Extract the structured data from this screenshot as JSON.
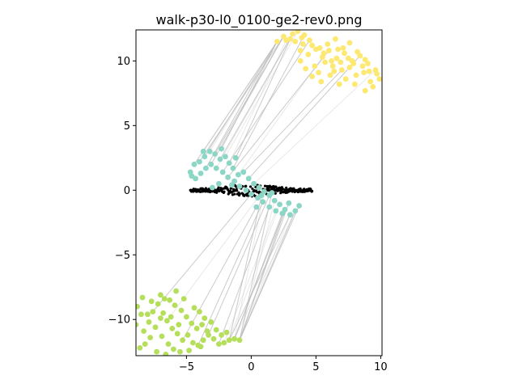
{
  "chart_data": {
    "type": "scatter",
    "title": "walk-p30-l0_0100-ge2-rev0.png",
    "xlabel": "",
    "ylabel": "",
    "xlim": [
      -8.9,
      10.1
    ],
    "ylim": [
      -12.8,
      12.4
    ],
    "x_ticks": [
      -5,
      0,
      5,
      10
    ],
    "y_ticks": [
      -10,
      -5,
      0,
      5,
      10
    ],
    "x_tick_labels": [
      "−5",
      "0",
      "5",
      "10"
    ],
    "y_tick_labels": [
      "−10",
      "−5",
      "0",
      "5",
      "10"
    ],
    "grid": false,
    "legend": "none",
    "colors": {
      "yellow_cluster": "#fde872",
      "teal_cluster": "#8cd6c5",
      "green_cluster": "#b5de5a",
      "black_walk": "#000000",
      "links": "#bdbdbd"
    },
    "series": [
      {
        "color": "#fde872",
        "points": [
          [
            2.0,
            11.5
          ],
          [
            2.5,
            11.9
          ],
          [
            3.2,
            12.1
          ],
          [
            3.6,
            12.3
          ],
          [
            4.1,
            12.0
          ],
          [
            4.5,
            11.6
          ],
          [
            4.0,
            11.3
          ],
          [
            3.4,
            11.5
          ],
          [
            3.8,
            10.8
          ],
          [
            4.4,
            10.5
          ],
          [
            5.0,
            10.9
          ],
          [
            5.5,
            10.3
          ],
          [
            6.0,
            10.8
          ],
          [
            6.6,
            10.2
          ],
          [
            7.2,
            10.6
          ],
          [
            7.8,
            10.0
          ],
          [
            8.4,
            10.4
          ],
          [
            9.0,
            9.8
          ],
          [
            9.6,
            9.3
          ],
          [
            9.9,
            8.6
          ],
          [
            9.2,
            8.4
          ],
          [
            8.7,
            9.1
          ],
          [
            8.1,
            8.9
          ],
          [
            7.6,
            9.5
          ],
          [
            7.0,
            9.3
          ],
          [
            6.3,
            9.6
          ],
          [
            5.7,
            9.9
          ],
          [
            5.2,
            9.1
          ],
          [
            4.7,
            8.8
          ],
          [
            4.2,
            9.4
          ],
          [
            3.8,
            10.0
          ],
          [
            5.9,
            11.3
          ],
          [
            6.5,
            11.7
          ],
          [
            7.1,
            11.0
          ],
          [
            7.6,
            11.4
          ],
          [
            8.2,
            10.7
          ],
          [
            8.8,
            10.1
          ],
          [
            9.4,
            8.0
          ],
          [
            8.8,
            7.7
          ],
          [
            8.0,
            8.2
          ],
          [
            7.3,
            8.6
          ],
          [
            6.8,
            8.2
          ],
          [
            6.1,
            8.9
          ],
          [
            5.4,
            8.4
          ],
          [
            4.9,
            9.6
          ],
          [
            5.6,
            10.6
          ],
          [
            6.2,
            10.0
          ],
          [
            6.9,
            9.9
          ],
          [
            7.5,
            10.2
          ],
          [
            8.6,
            9.6
          ],
          [
            9.7,
            9.0
          ],
          [
            3.0,
            11.7
          ],
          [
            4.7,
            11.2
          ],
          [
            5.3,
            11.0
          ],
          [
            6.7,
            10.9
          ],
          [
            7.9,
            9.8
          ],
          [
            9.1,
            9.2
          ],
          [
            2.7,
            11.6
          ],
          [
            3.9,
            11.8
          ],
          [
            6.4,
            9.2
          ]
        ]
      },
      {
        "color": "#8cd6c5",
        "points": [
          [
            -4.7,
            1.4
          ],
          [
            -4.4,
            2.0
          ],
          [
            -4.0,
            2.2
          ],
          [
            -3.6,
            2.6
          ],
          [
            -3.2,
            3.0
          ],
          [
            -2.8,
            2.8
          ],
          [
            -2.4,
            2.4
          ],
          [
            -2.0,
            2.6
          ],
          [
            -1.7,
            2.1
          ],
          [
            -1.4,
            1.7
          ],
          [
            -1.0,
            1.2
          ],
          [
            -0.6,
            1.4
          ],
          [
            -0.2,
            0.9
          ],
          [
            0.2,
            0.5
          ],
          [
            0.6,
            0.2
          ],
          [
            1.0,
            -0.1
          ],
          [
            1.4,
            -0.4
          ],
          [
            1.8,
            -0.8
          ],
          [
            2.2,
            -1.1
          ],
          [
            2.6,
            -1.5
          ],
          [
            3.0,
            -1.9
          ],
          [
            3.4,
            -1.6
          ],
          [
            3.7,
            -1.2
          ],
          [
            2.4,
            -1.8
          ],
          [
            1.9,
            -1.6
          ],
          [
            1.4,
            -1.3
          ],
          [
            0.9,
            -0.9
          ],
          [
            0.5,
            -0.6
          ],
          [
            0.0,
            -0.3
          ],
          [
            -0.4,
            0.0
          ],
          [
            -0.9,
            0.3
          ],
          [
            -1.3,
            0.7
          ],
          [
            -1.8,
            1.0
          ],
          [
            -2.2,
            1.4
          ],
          [
            -2.7,
            1.7
          ],
          [
            -3.1,
            2.0
          ],
          [
            -3.5,
            1.7
          ],
          [
            -3.9,
            1.3
          ],
          [
            -4.3,
            0.9
          ],
          [
            -4.6,
            1.1
          ],
          [
            -3.0,
            0.2
          ],
          [
            -2.5,
            0.5
          ],
          [
            -1.5,
            0.4
          ],
          [
            -3.7,
            3.0
          ],
          [
            -2.3,
            3.2
          ],
          [
            -1.2,
            2.5
          ],
          [
            0.4,
            -1.3
          ],
          [
            0.8,
            -0.4
          ],
          [
            1.6,
            -0.2
          ],
          [
            2.9,
            -1.0
          ]
        ]
      },
      {
        "color": "#b5de5a",
        "points": [
          [
            -8.8,
            -9.0
          ],
          [
            -8.5,
            -9.6
          ],
          [
            -8.9,
            -10.4
          ],
          [
            -8.3,
            -10.9
          ],
          [
            -7.9,
            -10.2
          ],
          [
            -7.6,
            -9.4
          ],
          [
            -7.2,
            -8.8
          ],
          [
            -6.8,
            -9.5
          ],
          [
            -6.5,
            -10.1
          ],
          [
            -6.1,
            -10.7
          ],
          [
            -5.7,
            -11.1
          ],
          [
            -5.3,
            -11.6
          ],
          [
            -4.9,
            -11.2
          ],
          [
            -4.5,
            -11.8
          ],
          [
            -4.1,
            -12.0
          ],
          [
            -3.7,
            -11.6
          ],
          [
            -3.3,
            -11.2
          ],
          [
            -2.9,
            -11.5
          ],
          [
            -2.5,
            -11.9
          ],
          [
            -2.1,
            -11.8
          ],
          [
            -1.7,
            -11.6
          ],
          [
            -1.3,
            -11.5
          ],
          [
            -0.9,
            -11.6
          ],
          [
            -7.0,
            -8.1
          ],
          [
            -6.3,
            -8.5
          ],
          [
            -5.9,
            -8.9
          ],
          [
            -5.4,
            -9.3
          ],
          [
            -5.0,
            -9.8
          ],
          [
            -4.6,
            -10.3
          ],
          [
            -4.2,
            -10.7
          ],
          [
            -3.8,
            -10.4
          ],
          [
            -3.4,
            -10.9
          ],
          [
            -5.8,
            -7.8
          ],
          [
            -7.4,
            -10.6
          ],
          [
            -6.9,
            -11.3
          ],
          [
            -6.4,
            -11.9
          ],
          [
            -6.0,
            -12.3
          ],
          [
            -5.5,
            -12.5
          ],
          [
            -7.8,
            -11.4
          ],
          [
            -8.2,
            -11.9
          ],
          [
            -8.6,
            -12.2
          ],
          [
            -7.3,
            -12.5
          ],
          [
            -6.6,
            -12.7
          ],
          [
            -4.8,
            -12.4
          ],
          [
            -3.9,
            -12.1
          ],
          [
            -4.4,
            -9.1
          ],
          [
            -5.2,
            -8.4
          ],
          [
            -6.7,
            -8.4
          ],
          [
            -7.7,
            -8.6
          ],
          [
            -8.4,
            -8.3
          ],
          [
            -3.1,
            -10.2
          ],
          [
            -2.7,
            -10.8
          ],
          [
            -5.6,
            -10.4
          ],
          [
            -6.2,
            -9.8
          ],
          [
            -7.0,
            -9.9
          ],
          [
            -8.0,
            -9.6
          ],
          [
            -4.0,
            -9.4
          ],
          [
            -3.6,
            -9.9
          ],
          [
            -2.3,
            -11.2
          ],
          [
            -1.9,
            -11.0
          ]
        ]
      }
    ],
    "walk": {
      "color": "#000000",
      "x_range": [
        -4.7,
        4.7
      ],
      "y_spread": 0.7
    },
    "links": {
      "color": "#bdbdbd",
      "pairs": [
        [
          [
            -3.2,
            3.0
          ],
          [
            2.0,
            11.5
          ]
        ],
        [
          [
            -2.8,
            2.8
          ],
          [
            2.5,
            11.9
          ]
        ],
        [
          [
            -2.4,
            2.4
          ],
          [
            3.2,
            12.1
          ]
        ],
        [
          [
            -2.0,
            2.6
          ],
          [
            3.6,
            12.3
          ]
        ],
        [
          [
            -3.6,
            2.6
          ],
          [
            2.0,
            11.5
          ]
        ],
        [
          [
            -4.0,
            2.2
          ],
          [
            2.5,
            11.9
          ]
        ],
        [
          [
            -1.7,
            2.1
          ],
          [
            2.7,
            11.6
          ]
        ],
        [
          [
            -1.4,
            1.7
          ],
          [
            4.1,
            12.0
          ]
        ],
        [
          [
            -3.5,
            1.7
          ],
          [
            2.0,
            11.5
          ]
        ],
        [
          [
            -2.7,
            1.7
          ],
          [
            3.0,
            11.7
          ]
        ],
        [
          [
            -3.1,
            2.0
          ],
          [
            2.5,
            11.9
          ]
        ],
        [
          [
            -4.4,
            2.0
          ],
          [
            2.0,
            11.5
          ]
        ],
        [
          [
            -1.0,
            1.2
          ],
          [
            5.5,
            10.3
          ]
        ],
        [
          [
            -0.6,
            1.4
          ],
          [
            7.0,
            9.3
          ]
        ],
        [
          [
            -0.2,
            0.9
          ],
          [
            8.4,
            10.4
          ]
        ],
        [
          [
            0.2,
            0.5
          ],
          [
            9.6,
            9.3
          ]
        ],
        [
          [
            -1.8,
            1.0
          ],
          [
            6.0,
            10.8
          ]
        ],
        [
          [
            -2.2,
            1.4
          ],
          [
            4.5,
            11.6
          ]
        ],
        [
          [
            -3.7,
            3.0
          ],
          [
            2.0,
            11.5
          ]
        ],
        [
          [
            -2.3,
            3.2
          ],
          [
            2.0,
            11.5
          ]
        ],
        [
          [
            -1.2,
            2.5
          ],
          [
            3.2,
            12.1
          ]
        ],
        [
          [
            3.0,
            -1.9
          ],
          [
            -0.9,
            -11.6
          ]
        ],
        [
          [
            3.4,
            -1.6
          ],
          [
            -0.9,
            -11.6
          ]
        ],
        [
          [
            2.6,
            -1.5
          ],
          [
            -1.3,
            -11.5
          ]
        ],
        [
          [
            2.2,
            -1.1
          ],
          [
            -1.7,
            -11.6
          ]
        ],
        [
          [
            3.7,
            -1.2
          ],
          [
            -0.9,
            -11.6
          ]
        ],
        [
          [
            2.4,
            -1.8
          ],
          [
            -1.3,
            -11.5
          ]
        ],
        [
          [
            1.9,
            -1.6
          ],
          [
            -2.1,
            -11.8
          ]
        ],
        [
          [
            1.4,
            -1.3
          ],
          [
            -2.5,
            -11.9
          ]
        ],
        [
          [
            0.9,
            -0.9
          ],
          [
            -4.1,
            -12.0
          ]
        ],
        [
          [
            1.8,
            -0.8
          ],
          [
            -0.9,
            -11.6
          ]
        ],
        [
          [
            2.9,
            -1.0
          ],
          [
            -0.9,
            -11.6
          ]
        ],
        [
          [
            0.4,
            -1.3
          ],
          [
            -5.3,
            -11.6
          ]
        ],
        [
          [
            0.5,
            -0.6
          ],
          [
            -6.5,
            -10.1
          ]
        ],
        [
          [
            0.0,
            -0.3
          ],
          [
            -7.6,
            -9.4
          ]
        ],
        [
          [
            1.4,
            -0.4
          ],
          [
            -3.3,
            -11.2
          ]
        ],
        [
          [
            1.0,
            -0.1
          ],
          [
            -1.3,
            -11.5
          ]
        ],
        [
          [
            1.6,
            -0.2
          ],
          [
            -0.9,
            -11.6
          ]
        ],
        [
          [
            0.8,
            -0.4
          ],
          [
            -1.7,
            -11.6
          ]
        ],
        [
          [
            3.4,
            -1.6
          ],
          [
            -1.3,
            -11.5
          ]
        ],
        [
          [
            3.0,
            -1.9
          ],
          [
            -1.7,
            -11.6
          ]
        ],
        [
          [
            2.6,
            -1.5
          ],
          [
            -0.9,
            -11.6
          ]
        ]
      ]
    }
  }
}
